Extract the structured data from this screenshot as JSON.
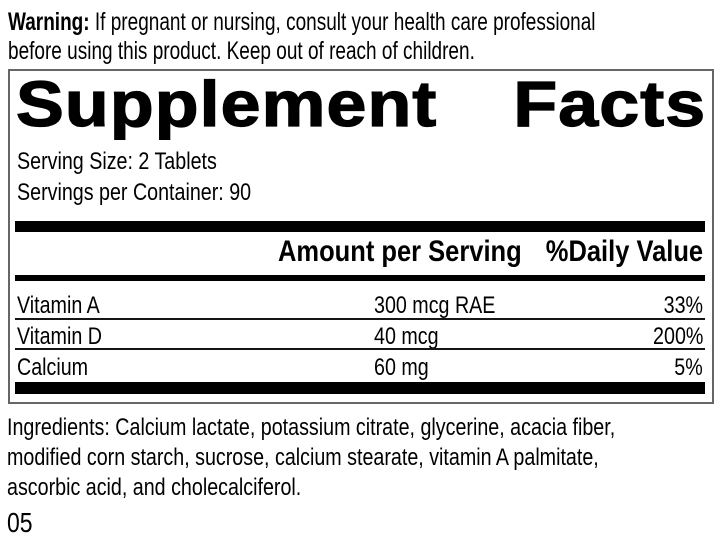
{
  "colors": {
    "ink": "#000000",
    "panel_border": "#666666",
    "rule": "#151515",
    "background": "#ffffff"
  },
  "warning": {
    "bold_label": "Warning:",
    "line1_rest": " If pregnant or nursing, consult your health care professional",
    "line2": "before using this product. Keep out of reach of children."
  },
  "panel": {
    "title_left": "Supplement",
    "title_right": "Facts",
    "serving_size": "Serving Size: 2 Tablets",
    "servings_per_container": "Servings per Container: 90",
    "columns": {
      "amount": "Amount per Serving",
      "daily_value": "%Daily Value"
    },
    "rows": [
      {
        "name": "Vitamin A",
        "amount": "300 mcg RAE",
        "daily_value": "33%"
      },
      {
        "name": "Vitamin D",
        "amount": "40 mcg",
        "daily_value": "200%"
      },
      {
        "name": "Calcium",
        "amount": "60 mg",
        "daily_value": "5%"
      }
    ]
  },
  "ingredients": {
    "lines": [
      "Ingredients: Calcium lactate, potassium citrate, glycerine, acacia fiber,",
      "modified corn starch, sucrose, calcium stearate, vitamin A palmitate,",
      "ascorbic acid, and cholecalciferol."
    ]
  },
  "footer_code": "05"
}
